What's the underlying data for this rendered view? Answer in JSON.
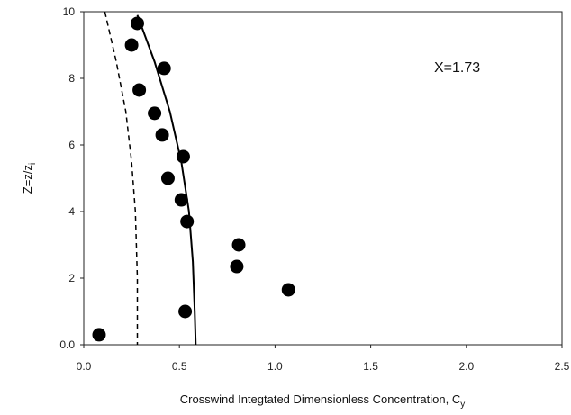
{
  "chart_data": {
    "type": "scatter",
    "title": "",
    "annotation": "X=1.73",
    "xlabel": "Crosswind Integtated Dimensionless Concentration, C",
    "xlabel_subscript": "y",
    "ylabel": "Z=z/z",
    "ylabel_subscript": "i",
    "xlim": [
      0,
      2.5
    ],
    "ylim": [
      0,
      10
    ],
    "xticks": [
      0,
      0.5,
      1.0,
      1.5,
      2.0,
      2.5
    ],
    "xtick_labels": [
      "0.0",
      "0.5",
      "1.0",
      "1.5",
      "2.0",
      "2.5"
    ],
    "yticks": [
      0,
      2,
      4,
      6,
      8,
      10
    ],
    "ytick_labels": [
      "0.0",
      "2",
      "4",
      "6",
      "8",
      "10"
    ],
    "grid": false,
    "series": [
      {
        "kind": "points",
        "x": [
          0.28,
          0.25,
          0.42,
          0.29,
          0.37,
          0.41,
          0.44,
          0.52,
          0.51,
          0.54,
          0.81,
          0.8,
          1.07,
          0.53,
          0.08
        ],
        "y": [
          9.65,
          9.0,
          8.3,
          7.65,
          6.95,
          6.3,
          5.0,
          5.65,
          4.35,
          3.7,
          3.0,
          2.35,
          1.65,
          1.0,
          0.3
        ]
      },
      {
        "kind": "solid-line",
        "x": [
          0.28,
          0.37,
          0.45,
          0.51,
          0.55,
          0.57,
          0.58,
          0.585
        ],
        "y": [
          9.9,
          8.5,
          7.0,
          5.5,
          4.0,
          2.5,
          1.0,
          0.0
        ]
      },
      {
        "kind": "dashed-line",
        "x": [
          0.11,
          0.17,
          0.22,
          0.25,
          0.27,
          0.28,
          0.28
        ],
        "y": [
          10.0,
          8.5,
          7.0,
          5.5,
          4.0,
          2.0,
          0.0
        ]
      }
    ]
  }
}
